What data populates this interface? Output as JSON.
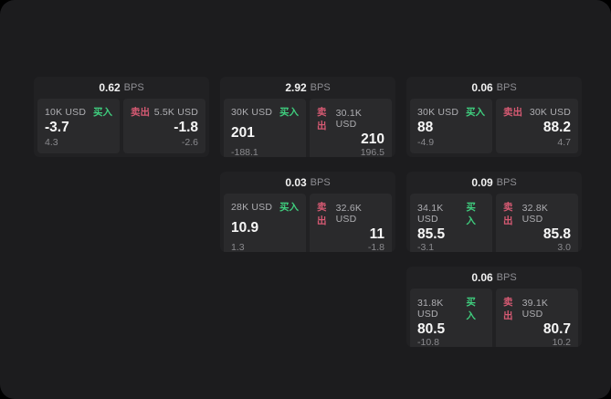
{
  "colors": {
    "buy_green": "#3fce7e",
    "sell_red": "#d65a73",
    "window_bg": "#1c1c1e",
    "card_bg": "#212123",
    "panel_bg": "#2a2a2c"
  },
  "cards": [
    {
      "bps": "0.62",
      "bps_unit": "BPS",
      "buy": {
        "amount": "10K USD",
        "side_label": "买入",
        "value": "-3.7",
        "sub": "4.3"
      },
      "sell": {
        "amount": "5.5K USD",
        "side_label": "卖出",
        "value": "-1.8",
        "sub": "-2.6"
      }
    },
    {
      "bps": "2.92",
      "bps_unit": "BPS",
      "buy": {
        "amount": "30K USD",
        "side_label": "买入",
        "value": "201",
        "sub": "-188.1"
      },
      "sell": {
        "amount": "30.1K USD",
        "side_label": "卖出",
        "value": "210",
        "sub": "196.5"
      }
    },
    {
      "bps": "0.06",
      "bps_unit": "BPS",
      "buy": {
        "amount": "30K USD",
        "side_label": "买入",
        "value": "88",
        "sub": "-4.9"
      },
      "sell": {
        "amount": "30K USD",
        "side_label": "卖出",
        "value": "88.2",
        "sub": "4.7"
      }
    },
    {
      "bps": "0.03",
      "bps_unit": "BPS",
      "buy": {
        "amount": "28K USD",
        "side_label": "买入",
        "value": "10.9",
        "sub": "1.3"
      },
      "sell": {
        "amount": "32.6K USD",
        "side_label": "卖出",
        "value": "11",
        "sub": "-1.8"
      }
    },
    {
      "bps": "0.09",
      "bps_unit": "BPS",
      "buy": {
        "amount": "34.1K USD",
        "side_label": "买入",
        "value": "85.5",
        "sub": "-3.1"
      },
      "sell": {
        "amount": "32.8K USD",
        "side_label": "卖出",
        "value": "85.8",
        "sub": "3.0"
      }
    },
    {
      "bps": "0.06",
      "bps_unit": "BPS",
      "buy": {
        "amount": "31.8K USD",
        "side_label": "买入",
        "value": "80.5",
        "sub": "-10.8"
      },
      "sell": {
        "amount": "39.1K USD",
        "side_label": "卖出",
        "value": "80.7",
        "sub": "10.2"
      }
    }
  ]
}
